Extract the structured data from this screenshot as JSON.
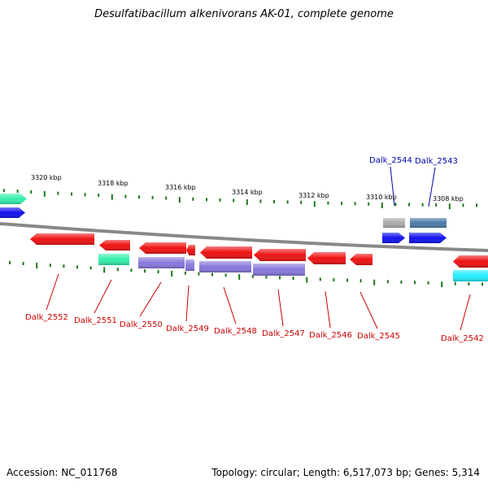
{
  "title": "Desulfatibacillum alkenivorans AK-01, complete genome",
  "footer": {
    "accession": "Accession: NC_011768",
    "summary": "Topology: circular; Length: 6,517,073 bp; Genes: 5,314"
  },
  "colors": {
    "backbone": "#888888",
    "tick": "#1a7a1a",
    "label_red": "#cc0000",
    "label_blue": "#0000aa",
    "gene_red": "#ee1111",
    "gene_purple": "#8877dd",
    "gene_teal": "#33eeaa",
    "gene_blue": "#1111ee",
    "gene_gray": "#aaaaaa",
    "gene_steel": "#4a7aaa",
    "gene_cyan": "#22eeff"
  },
  "scale_labels": [
    {
      "id": "kbp-3320",
      "text": "3320 kbp"
    },
    {
      "id": "kbp-3318",
      "text": "3318 kbp"
    },
    {
      "id": "kbp-3316",
      "text": "3316 kbp"
    },
    {
      "id": "kbp-3314",
      "text": "3314 kbp"
    },
    {
      "id": "kbp-3312",
      "text": "3312 kbp"
    },
    {
      "id": "kbp-3310",
      "text": "3310 kbp"
    },
    {
      "id": "kbp-3308",
      "text": "3308 kbp"
    }
  ],
  "gene_labels": [
    {
      "id": "dalk-2552",
      "text": "Dalk_2552",
      "strand": "reverse"
    },
    {
      "id": "dalk-2551",
      "text": "Dalk_2551",
      "strand": "reverse"
    },
    {
      "id": "dalk-2550",
      "text": "Dalk_2550",
      "strand": "reverse"
    },
    {
      "id": "dalk-2549",
      "text": "Dalk_2549",
      "strand": "reverse"
    },
    {
      "id": "dalk-2548",
      "text": "Dalk_2548",
      "strand": "reverse"
    },
    {
      "id": "dalk-2547",
      "text": "Dalk_2547",
      "strand": "reverse"
    },
    {
      "id": "dalk-2546",
      "text": "Dalk_2546",
      "strand": "reverse"
    },
    {
      "id": "dalk-2545",
      "text": "Dalk_2545",
      "strand": "reverse"
    },
    {
      "id": "dalk-2542",
      "text": "Dalk_2542",
      "strand": "reverse"
    },
    {
      "id": "dalk-2544",
      "text": "Dalk_2544",
      "strand": "forward"
    },
    {
      "id": "dalk-2543",
      "text": "Dalk_2543",
      "strand": "forward"
    }
  ]
}
